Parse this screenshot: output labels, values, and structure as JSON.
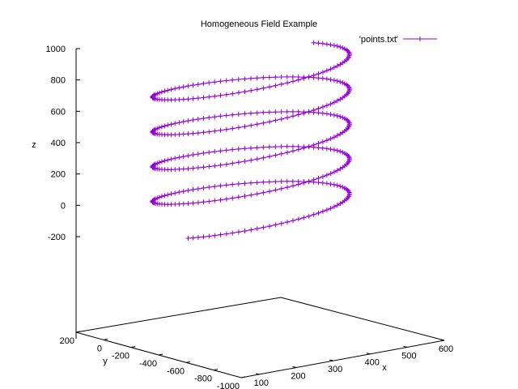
{
  "chart_data": {
    "type": "line",
    "projection": "3d",
    "title": "Homogeneous Field Example",
    "xlabel": "x",
    "ylabel": "y",
    "zlabel": "z",
    "xlim": [
      50,
      600
    ],
    "ylim": [
      -1000,
      200
    ],
    "zlim": [
      -200,
      1000
    ],
    "x_ticks": [
      "100",
      "200",
      "300",
      "400",
      "500",
      "600"
    ],
    "y_ticks": [
      "200",
      "0",
      "-200",
      "-400",
      "-600",
      "-800",
      "-1000"
    ],
    "z_ticks": [
      "1000",
      "800",
      "600",
      "400",
      "200",
      "0",
      "-200"
    ],
    "grid": false,
    "legend_position": "top-right",
    "series": [
      {
        "name": "'points.txt'",
        "color": "#9400d3",
        "marker": "plus",
        "helix": {
          "center_x": 300,
          "center_y": -400,
          "radius": 250,
          "z_start": -50,
          "z_end": 950,
          "turns": 4.5,
          "start_angle_deg": 210,
          "points": 450
        }
      }
    ]
  }
}
